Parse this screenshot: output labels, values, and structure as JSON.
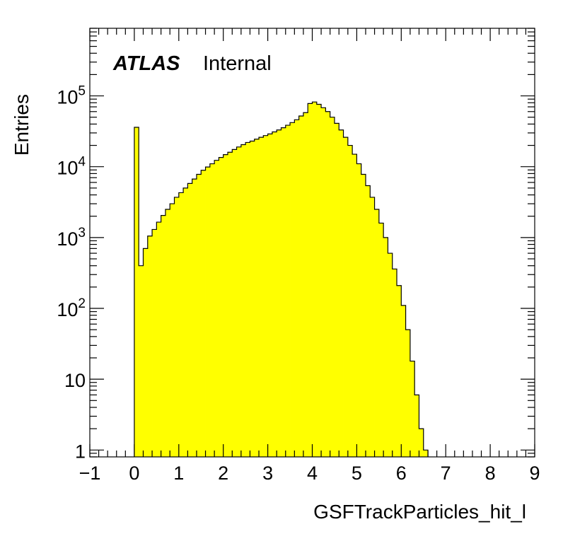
{
  "chart_data": {
    "type": "bar",
    "xlabel": "GSFTrackParticles_hit_l",
    "ylabel": "Entries",
    "xlim": [
      -1,
      9
    ],
    "ylim": [
      0.8,
      900000
    ],
    "log_y": true,
    "bin_width": 0.1,
    "x_start": 0.0,
    "values": [
      36000,
      400,
      700,
      1050,
      1300,
      1650,
      2050,
      2500,
      3000,
      3700,
      4300,
      5000,
      5800,
      6700,
      7800,
      8900,
      9900,
      11000,
      12300,
      13500,
      14800,
      16000,
      17500,
      19000,
      20500,
      22000,
      23000,
      24500,
      26000,
      27500,
      29000,
      31000,
      33000,
      35500,
      38500,
      42000,
      46000,
      52000,
      58000,
      78000,
      82000,
      76000,
      68000,
      60000,
      50000,
      41000,
      33000,
      26000,
      20000,
      15000,
      11000,
      7800,
      5400,
      3700,
      2500,
      1600,
      1000,
      600,
      360,
      210,
      110,
      50,
      18,
      6,
      2,
      1
    ],
    "fill_color": "#ffff00",
    "tick_labels_x": [
      "−1",
      "0",
      "1",
      "2",
      "3",
      "4",
      "5",
      "6",
      "7",
      "8",
      "9"
    ],
    "tick_values_x": [
      -1,
      0,
      1,
      2,
      3,
      4,
      5,
      6,
      7,
      8,
      9
    ],
    "tick_values_y": [
      1,
      10,
      100,
      1000,
      10000,
      100000
    ],
    "annotation": {
      "experiment": "ATLAS",
      "status": "Internal"
    }
  }
}
